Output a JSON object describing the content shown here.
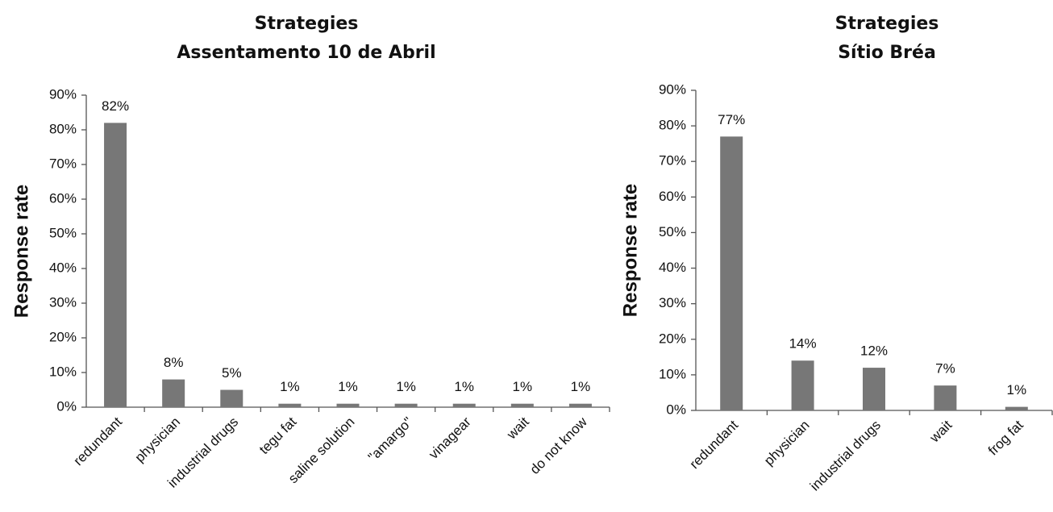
{
  "chart_data": [
    {
      "type": "bar",
      "title": "Strategies",
      "subtitle": "Assentamento 10 de Abril",
      "y_label": "Response rate",
      "categories": [
        "redundant",
        "physician",
        "industrial drugs",
        "tegu fat",
        "saline solution",
        "\"amargo\"",
        "vinagear",
        "wait",
        "do not know"
      ],
      "values": [
        82,
        8,
        5,
        1,
        1,
        1,
        1,
        1,
        1
      ],
      "value_labels": [
        "82%",
        "8%",
        "5%",
        "1%",
        "1%",
        "1%",
        "1%",
        "1%",
        "1%"
      ],
      "color": "#777777",
      "ylim": [
        0,
        90
      ],
      "yticks": [
        {
          "value": 0,
          "label": "0%"
        },
        {
          "value": 10,
          "label": "10%"
        },
        {
          "value": 20,
          "label": "20%"
        },
        {
          "value": 30,
          "label": "30%"
        },
        {
          "value": 40,
          "label": "40%"
        },
        {
          "value": 50,
          "label": "50%"
        },
        {
          "value": 60,
          "label": "60%"
        },
        {
          "value": 70,
          "label": "70%"
        },
        {
          "value": 80,
          "label": "80%"
        },
        {
          "value": 90,
          "label": "90%"
        }
      ]
    },
    {
      "type": "bar",
      "title": "Strategies",
      "subtitle": "Sítio Bréa",
      "y_label": "Response rate",
      "categories": [
        "redundant",
        "physician",
        "industrial drugs",
        "wait",
        "frog fat"
      ],
      "values": [
        77,
        14,
        12,
        7,
        1
      ],
      "value_labels": [
        "77%",
        "14%",
        "12%",
        "7%",
        "1%"
      ],
      "color": "#777777",
      "ylim": [
        0,
        90
      ],
      "yticks": [
        {
          "value": 0,
          "label": "0%"
        },
        {
          "value": 10,
          "label": "10%"
        },
        {
          "value": 20,
          "label": "20%"
        },
        {
          "value": 30,
          "label": "30%"
        },
        {
          "value": 40,
          "label": "40%"
        },
        {
          "value": 50,
          "label": "50%"
        },
        {
          "value": 60,
          "label": "60%"
        },
        {
          "value": 70,
          "label": "70%"
        },
        {
          "value": 80,
          "label": "80%"
        },
        {
          "value": 90,
          "label": "90%"
        }
      ]
    }
  ]
}
